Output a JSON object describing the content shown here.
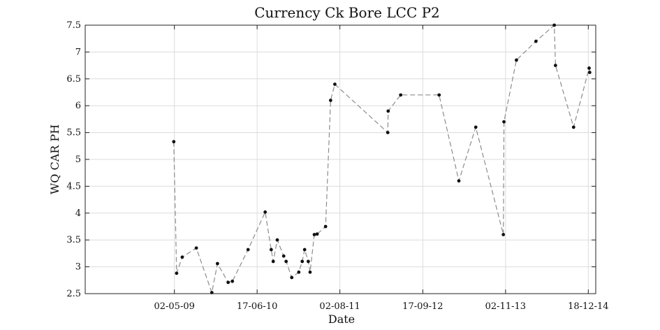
{
  "chart_data": {
    "type": "line",
    "title": "Currency Ck Bore LCC P2",
    "xlabel": "Date",
    "ylabel": "WQ CAR PH",
    "xlim": [
      "2008-02-14",
      "2015-01-24"
    ],
    "ylim": [
      2.5,
      7.5
    ],
    "x_ticks": [
      "2009-05-02",
      "2010-06-17",
      "2011-08-02",
      "2012-09-17",
      "2013-11-02",
      "2014-12-18"
    ],
    "x_tick_labels": [
      "02-05-09",
      "17-06-10",
      "02-08-11",
      "17-09-12",
      "02-11-13",
      "18-12-14"
    ],
    "y_ticks": [
      2.5,
      3,
      3.5,
      4,
      4.5,
      5,
      5.5,
      6,
      6.5,
      7,
      7.5
    ],
    "y_tick_labels": [
      "2.5",
      "3",
      "3.5",
      "4",
      "4.5",
      "5",
      "5.5",
      "6",
      "6.5",
      "7",
      "7.5"
    ],
    "grid": true,
    "legend": "none",
    "series": [
      {
        "x": [
          "2009-04-29",
          "2009-05-13",
          "2009-06-10",
          "2009-08-19",
          "2009-11-04",
          "2009-12-02",
          "2010-01-24",
          "2010-02-14",
          "2010-05-03",
          "2010-07-27",
          "2010-08-26",
          "2010-09-05",
          "2010-09-25",
          "2010-10-27",
          "2010-11-08",
          "2010-12-06",
          "2011-01-10",
          "2011-01-27",
          "2011-02-08",
          "2011-02-26",
          "2011-03-07",
          "2011-03-28",
          "2011-04-11",
          "2011-05-23",
          "2011-06-17",
          "2011-07-08",
          "2012-03-27",
          "2012-03-29",
          "2012-05-30",
          "2012-12-07",
          "2013-03-15",
          "2013-06-07",
          "2013-10-22",
          "2013-10-25",
          "2013-12-26",
          "2014-04-02",
          "2014-07-02",
          "2014-07-08",
          "2014-10-06",
          "2014-12-22",
          "2014-12-25"
        ],
        "y": [
          5.33,
          2.88,
          3.18,
          3.35,
          2.52,
          3.06,
          2.71,
          2.73,
          3.32,
          4.02,
          3.32,
          3.1,
          3.5,
          3.2,
          3.1,
          2.8,
          2.9,
          3.1,
          3.32,
          3.1,
          2.9,
          3.6,
          3.61,
          3.75,
          6.1,
          6.4,
          5.5,
          5.9,
          6.2,
          6.2,
          4.6,
          5.6,
          3.6,
          5.7,
          6.85,
          7.2,
          7.5,
          6.75,
          5.6,
          6.7,
          6.62
        ]
      }
    ]
  }
}
